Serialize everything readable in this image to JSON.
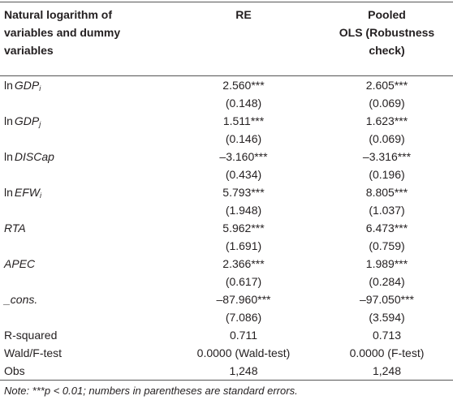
{
  "table": {
    "header": [
      [
        "Natural logarithm of",
        "variables and dummy",
        "variables"
      ],
      [
        "RE"
      ],
      [
        "Pooled",
        "OLS (Robustness check)"
      ]
    ],
    "variables": [
      {
        "label": {
          "prefix": "ln",
          "name": "GDP",
          "sub": "i"
        },
        "re": "2.560***",
        "pooled": "2.605***",
        "re_se": "(0.148)",
        "pooled_se": "(0.069)"
      },
      {
        "label": {
          "prefix": "ln",
          "name": "GDP",
          "sub": "j"
        },
        "re": "1.511***",
        "pooled": "1.623***",
        "re_se": "(0.146)",
        "pooled_se": "(0.069)"
      },
      {
        "label": {
          "prefix": "ln",
          "name": "DISCap"
        },
        "re": "–3.160***",
        "pooled": "–3.316***",
        "re_se": "(0.434)",
        "pooled_se": "(0.196)"
      },
      {
        "label": {
          "prefix": "ln",
          "name": "EFW",
          "sub": "i"
        },
        "re": "5.793***",
        "pooled": "8.805***",
        "re_se": "(1.948)",
        "pooled_se": "(1.037)"
      },
      {
        "label": {
          "name": "RTA"
        },
        "re": "5.962***",
        "pooled": "6.473***",
        "re_se": "(1.691)",
        "pooled_se": "(0.759)"
      },
      {
        "label": {
          "name": "APEC"
        },
        "re": "2.366***",
        "pooled": "1.989***",
        "re_se": "(0.617)",
        "pooled_se": "(0.284)"
      },
      {
        "label": {
          "name": "_cons."
        },
        "re": "–87.960***",
        "pooled": "–97.050***",
        "re_se": "(7.086)",
        "pooled_se": "(3.594)"
      }
    ],
    "stats": [
      {
        "label": "R-squared",
        "re": "0.711",
        "pooled": "0.713"
      },
      {
        "label": "Wald/F-test",
        "re": "0.0000 (Wald-test)",
        "pooled": "0.0000 (F-test)"
      },
      {
        "label": "Obs",
        "re": "1,248",
        "pooled": "1,248"
      }
    ],
    "note": "Note: ***p < 0.01; numbers in parentheses are standard errors."
  }
}
